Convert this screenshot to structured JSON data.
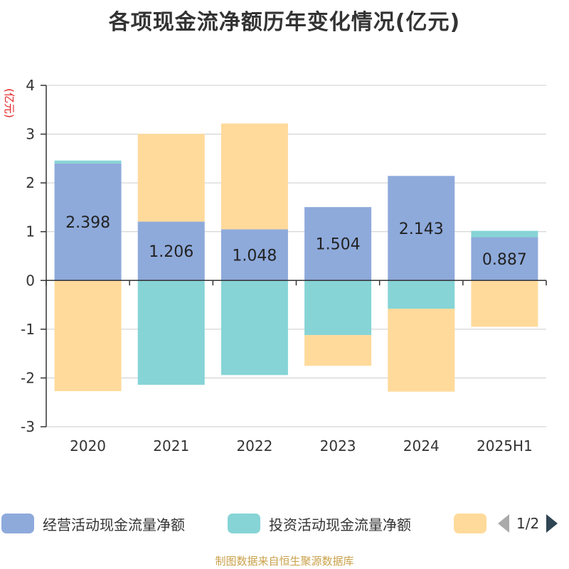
{
  "chart_data": {
    "type": "bar",
    "stacked": true,
    "title": "各项现金流净额历年变化情况(亿元)",
    "ylabel": "(亿元)",
    "ylim": [
      -3,
      4
    ],
    "yticks": [
      -3,
      -2,
      -1,
      0,
      1,
      2,
      3,
      4
    ],
    "grid": true,
    "categories": [
      "2020",
      "2021",
      "2022",
      "2023",
      "2024",
      "2025H1"
    ],
    "series": [
      {
        "name": "经营活动现金流量净额",
        "color": "#8eaadb",
        "values": [
          2.398,
          1.206,
          1.048,
          1.504,
          2.143,
          0.887
        ],
        "show_labels": true
      },
      {
        "name": "投资活动现金流量净额",
        "color": "#86d4d6",
        "values": [
          0.06,
          -2.14,
          -1.94,
          -1.12,
          -0.58,
          0.13
        ],
        "show_labels": false
      },
      {
        "name": "",
        "color": "#ffda9b",
        "values": [
          -2.27,
          1.8,
          2.17,
          -0.63,
          -1.7,
          -0.95
        ],
        "show_labels": false
      }
    ],
    "legend_position": "bottom"
  },
  "legend": {
    "page_text": "1/2"
  },
  "footer": {
    "source": "制图数据来自恒生聚源数据库"
  }
}
